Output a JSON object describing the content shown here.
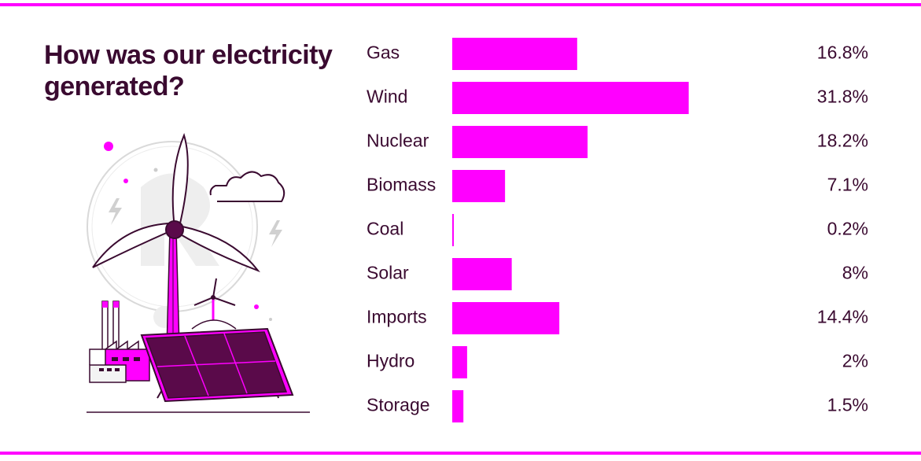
{
  "title": "How was our electricity generated?",
  "colors": {
    "accent": "#ff00ff",
    "text": "#3a0a30",
    "illus": "#5a0a4a",
    "background": "#ffffff"
  },
  "illustration": "wind-solar-factory-illustration",
  "chart_data": {
    "type": "bar",
    "orientation": "horizontal",
    "categories": [
      "Gas",
      "Wind",
      "Nuclear",
      "Biomass",
      "Coal",
      "Solar",
      "Imports",
      "Hydro",
      "Storage"
    ],
    "values": [
      16.8,
      31.8,
      18.2,
      7.1,
      0.2,
      8,
      14.4,
      2,
      1.5
    ],
    "value_labels": [
      "16.8%",
      "31.8%",
      "18.2%",
      "7.1%",
      "0.2%",
      "8%",
      "14.4%",
      "2%",
      "1.5%"
    ],
    "xlim": [
      0,
      55
    ],
    "grid": false,
    "legend": "none",
    "color": "#ff00ff"
  }
}
